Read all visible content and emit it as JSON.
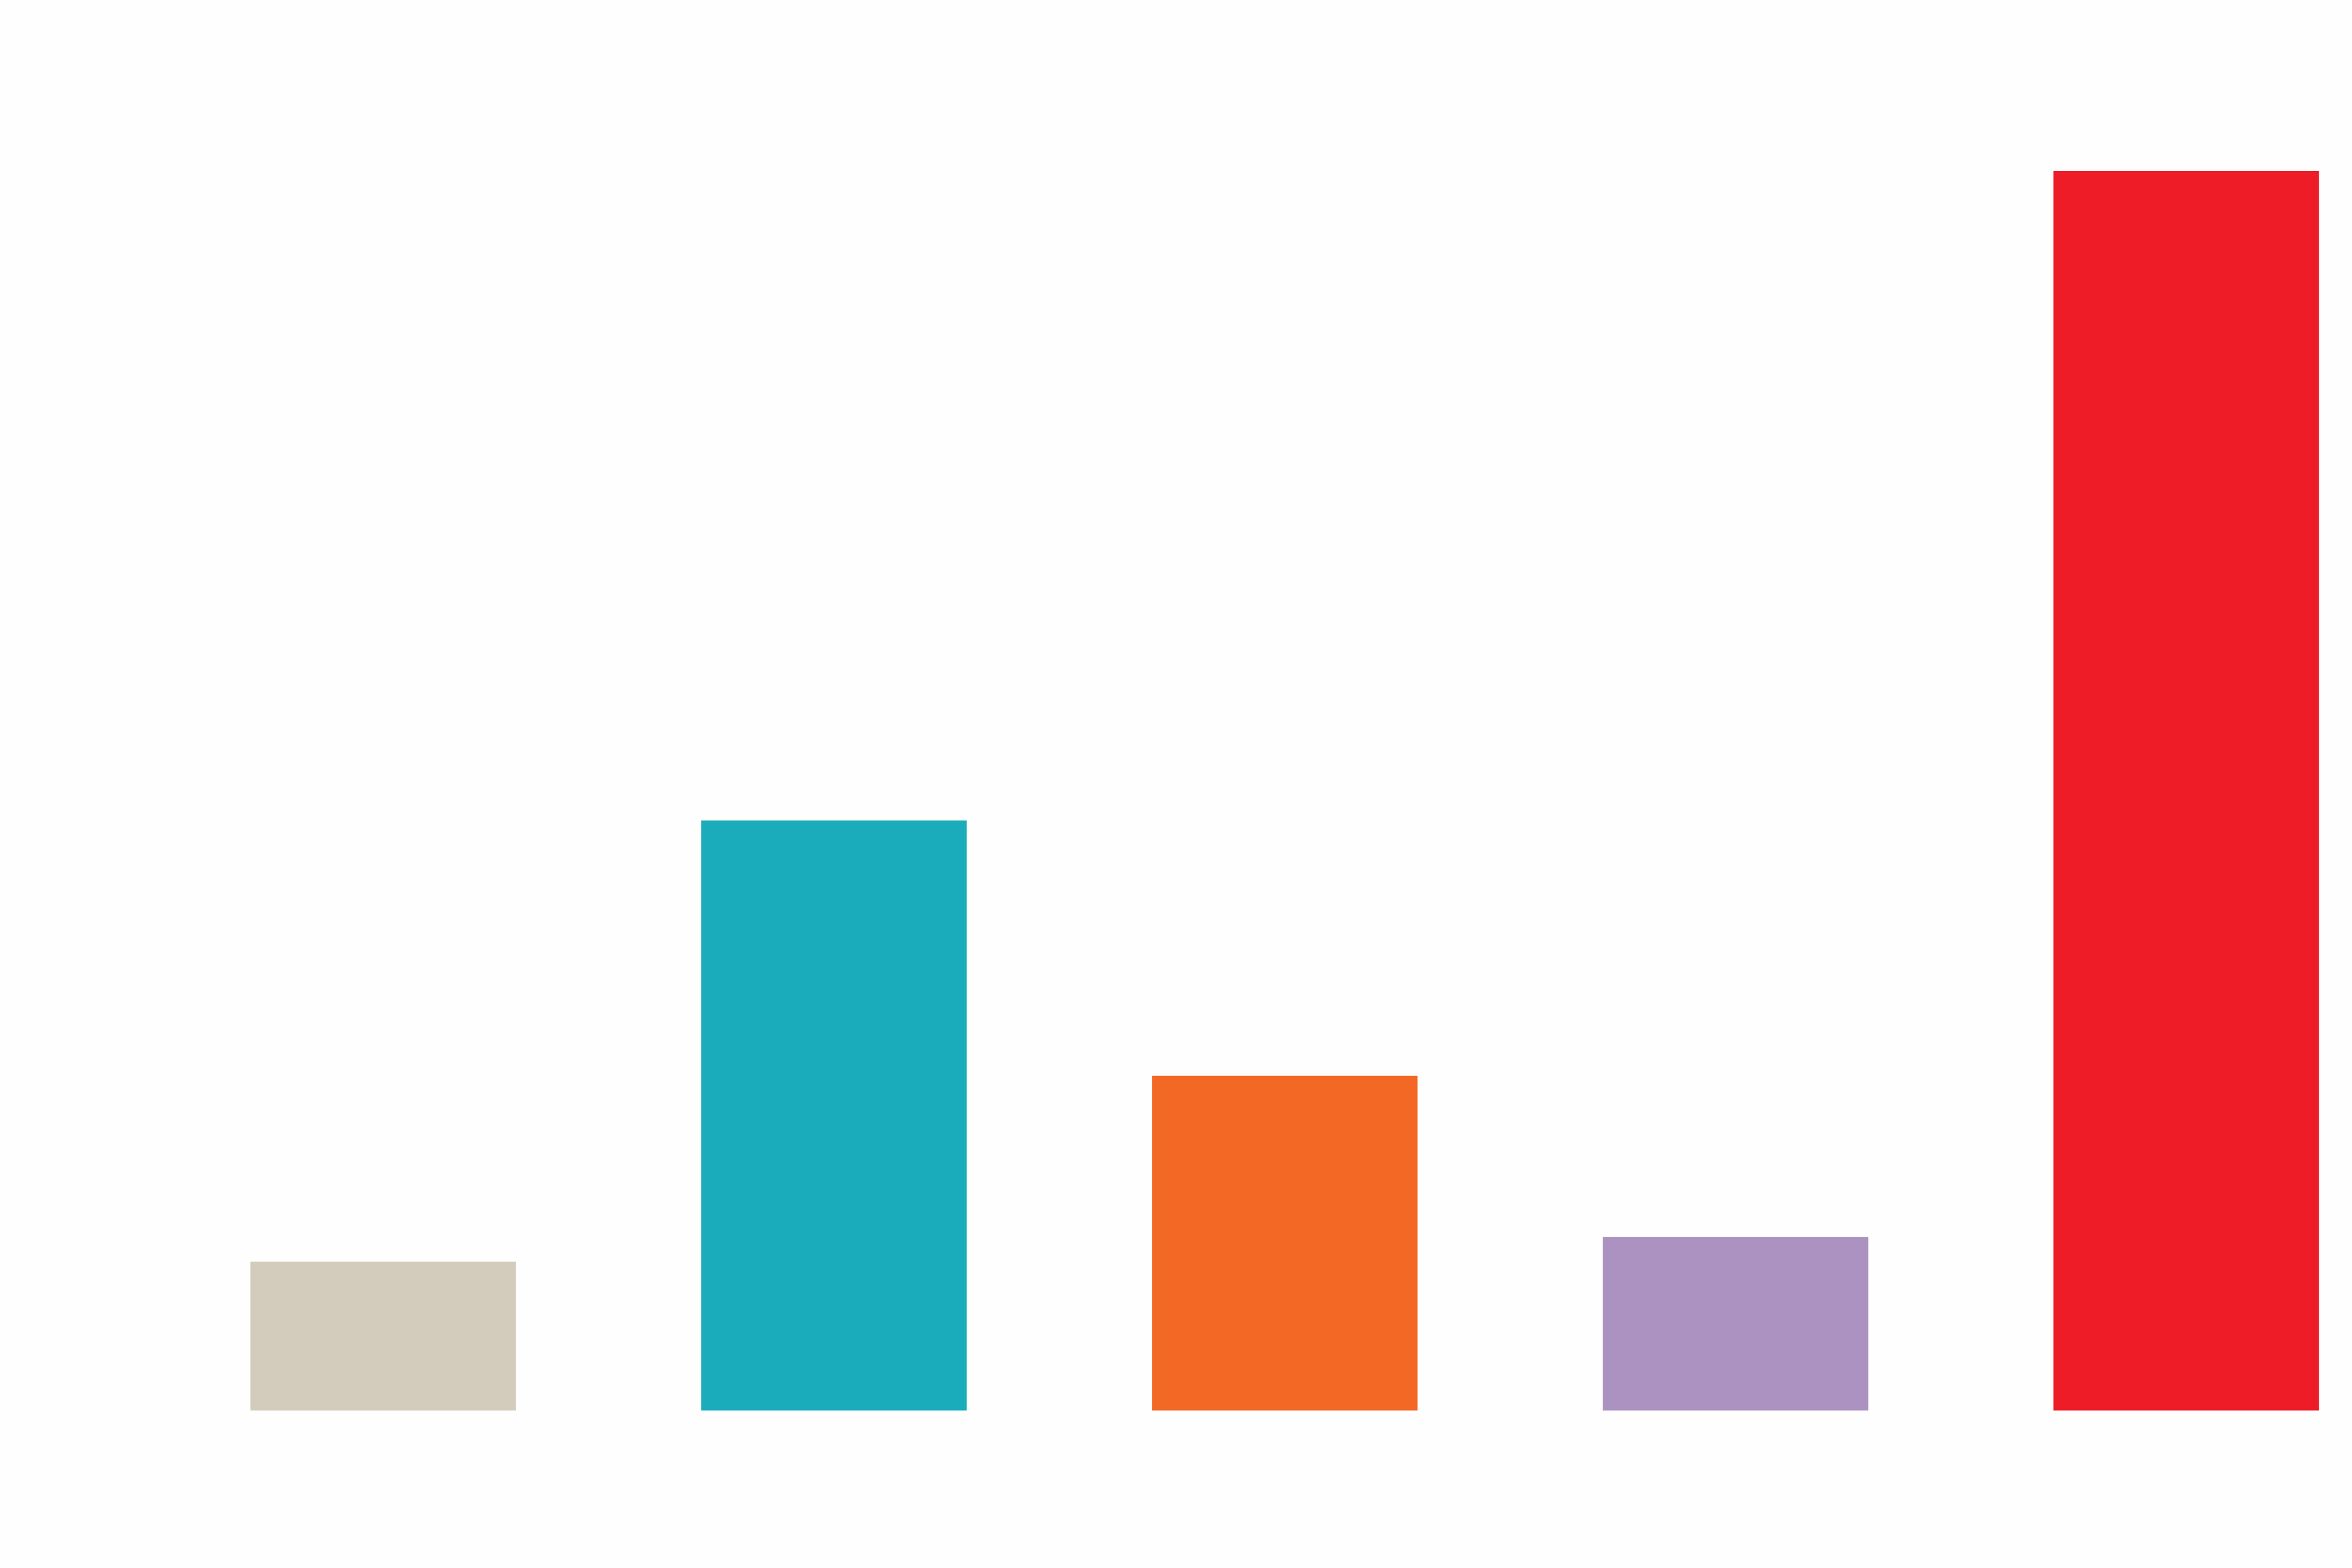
{
  "chart_data": {
    "type": "bar",
    "title": "",
    "xlabel": "",
    "ylabel": "",
    "categories": [
      "",
      "",
      "",
      "",
      ""
    ],
    "values": [
      12,
      47.6,
      27,
      14,
      100
    ],
    "ylim": [
      0,
      100
    ],
    "grid": false,
    "axes_visible": false,
    "colors": [
      "#d3ccbd",
      "#1aacbb",
      "#f26824",
      "#ab92c0",
      "#ed1c26"
    ]
  }
}
